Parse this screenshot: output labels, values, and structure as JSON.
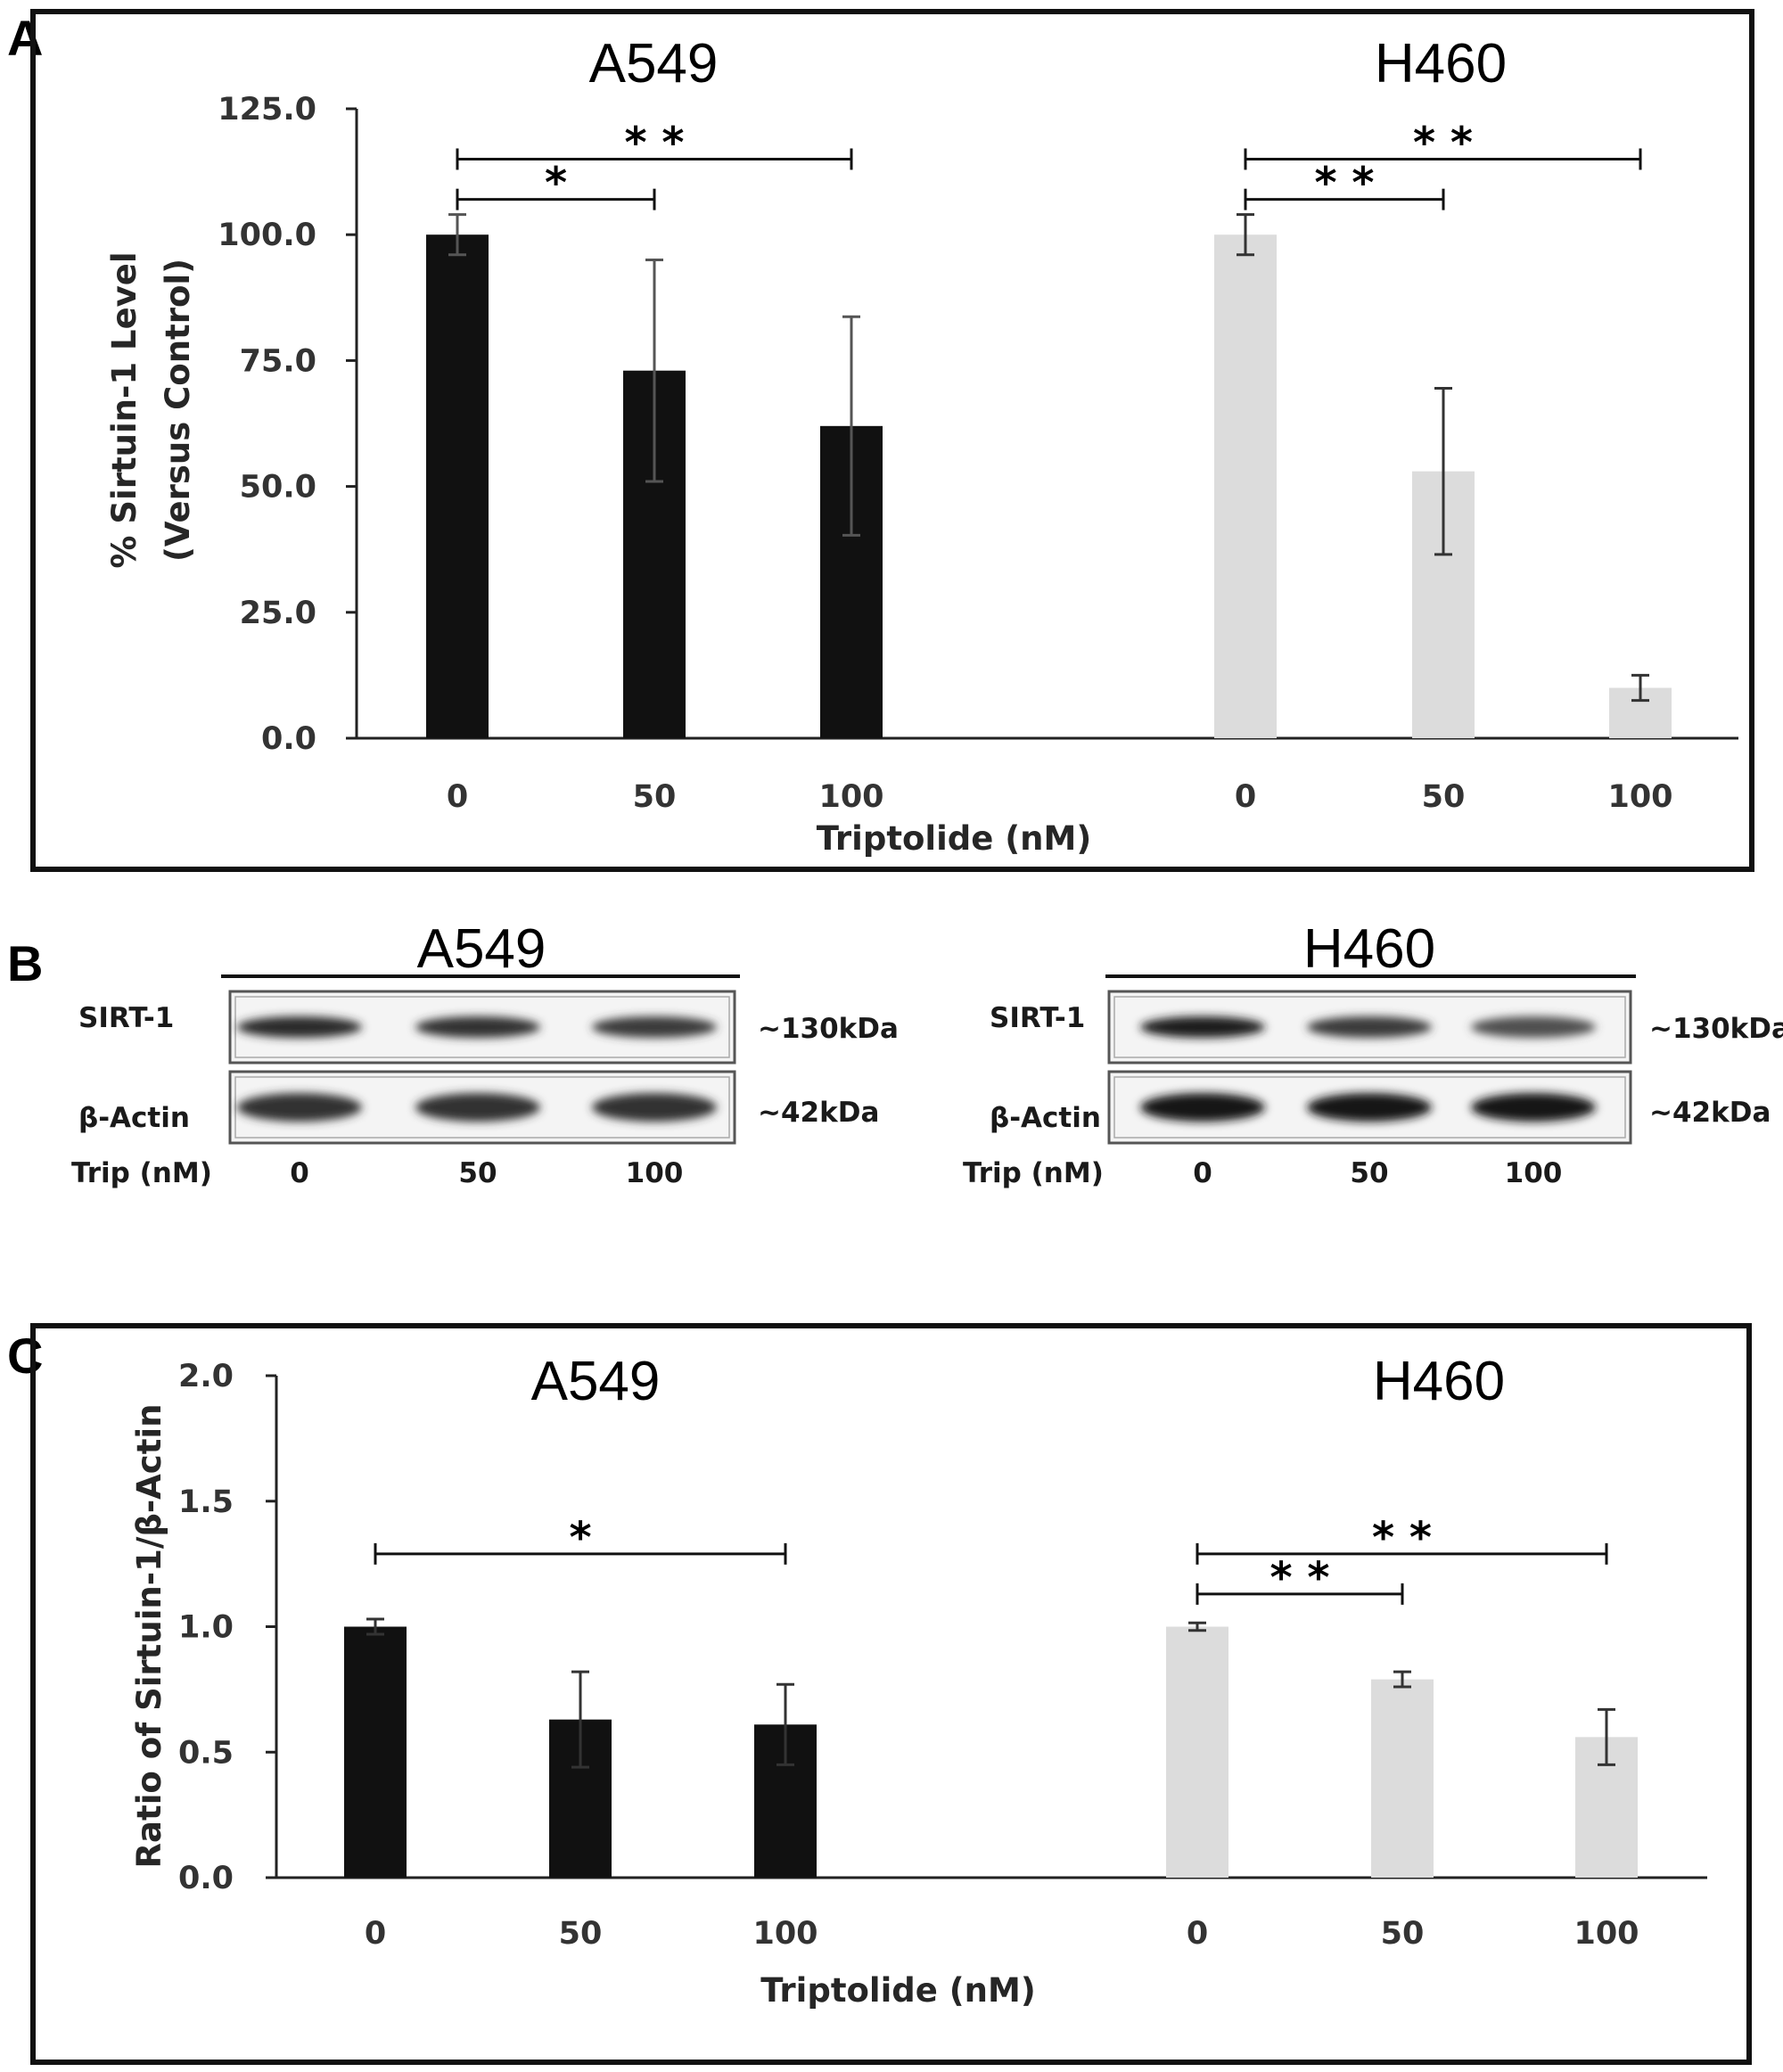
{
  "colors": {
    "a549": "#111111",
    "h460": "#dcdcdc",
    "frame": "#111111",
    "errorbar": "#444444"
  },
  "panels": {
    "a": {
      "letter": "A"
    },
    "b": {
      "letter": "B"
    },
    "c": {
      "letter": "C"
    }
  },
  "chart_data": [
    {
      "type": "bar",
      "panel": "A",
      "ylabel": [
        "% Sirtuin-1 Level",
        "(Versus Control)"
      ],
      "xlabel": "Triptolide (nM)",
      "ylim": [
        0,
        125
      ],
      "yticks": [
        "0.0",
        "25.0",
        "50.0",
        "75.0",
        "100.0",
        "125.0"
      ],
      "grid": false,
      "groups": [
        {
          "name": "A549",
          "categories": [
            "0",
            "50",
            "100"
          ],
          "values": [
            100.0,
            73.0,
            62.0
          ],
          "errors": [
            4.0,
            22.0,
            21.7
          ],
          "color": "#111111"
        },
        {
          "name": "H460",
          "categories": [
            "0",
            "50",
            "100"
          ],
          "values": [
            100.0,
            53.0,
            10.0
          ],
          "errors": [
            4.0,
            16.5,
            2.5
          ],
          "color": "#dcdcdc"
        }
      ],
      "significance": [
        {
          "group": 0,
          "from": 0,
          "to": 1,
          "label": "*",
          "y": 107
        },
        {
          "group": 0,
          "from": 0,
          "to": 2,
          "label": "* *",
          "y": 115
        },
        {
          "group": 1,
          "from": 0,
          "to": 1,
          "label": "* *",
          "y": 107
        },
        {
          "group": 1,
          "from": 0,
          "to": 2,
          "label": "* *",
          "y": 115
        }
      ]
    },
    {
      "type": "bar",
      "panel": "C",
      "ylabel": [
        "Ratio of Sirtuin-1/β-Actin"
      ],
      "xlabel": "Triptolide (nM)",
      "ylim": [
        0,
        2.0
      ],
      "yticks": [
        "0.0",
        "0.5",
        "1.0",
        "1.5",
        "2.0"
      ],
      "grid": false,
      "groups": [
        {
          "name": "A549",
          "categories": [
            "0",
            "50",
            "100"
          ],
          "values": [
            1.0,
            0.63,
            0.61
          ],
          "errors": [
            0.03,
            0.19,
            0.16
          ],
          "color": "#111111"
        },
        {
          "name": "H460",
          "categories": [
            "0",
            "50",
            "100"
          ],
          "values": [
            1.0,
            0.79,
            0.56
          ],
          "errors": [
            0.015,
            0.03,
            0.11
          ],
          "color": "#dcdcdc"
        }
      ],
      "significance": [
        {
          "group": 0,
          "from": 0,
          "to": 2,
          "label": "*",
          "y": 1.29
        },
        {
          "group": 1,
          "from": 0,
          "to": 1,
          "label": "* *",
          "y": 1.13
        },
        {
          "group": 1,
          "from": 0,
          "to": 2,
          "label": "* *",
          "y": 1.29
        }
      ]
    }
  ],
  "western_blot": {
    "rows": [
      {
        "label": "SIRT-1",
        "size": "~130kDa"
      },
      {
        "label": "β-Actin",
        "size": "~42kDa"
      }
    ],
    "lane_axis_label": "Trip (nM)",
    "lanes": [
      "0",
      "50",
      "100"
    ],
    "blots": [
      {
        "cell_line": "A549",
        "band_intensity": [
          [
            0.85,
            0.8,
            0.75
          ],
          [
            0.8,
            0.8,
            0.8
          ]
        ]
      },
      {
        "cell_line": "H460",
        "band_intensity": [
          [
            0.95,
            0.75,
            0.6
          ],
          [
            1.0,
            1.0,
            1.0
          ]
        ]
      }
    ]
  }
}
